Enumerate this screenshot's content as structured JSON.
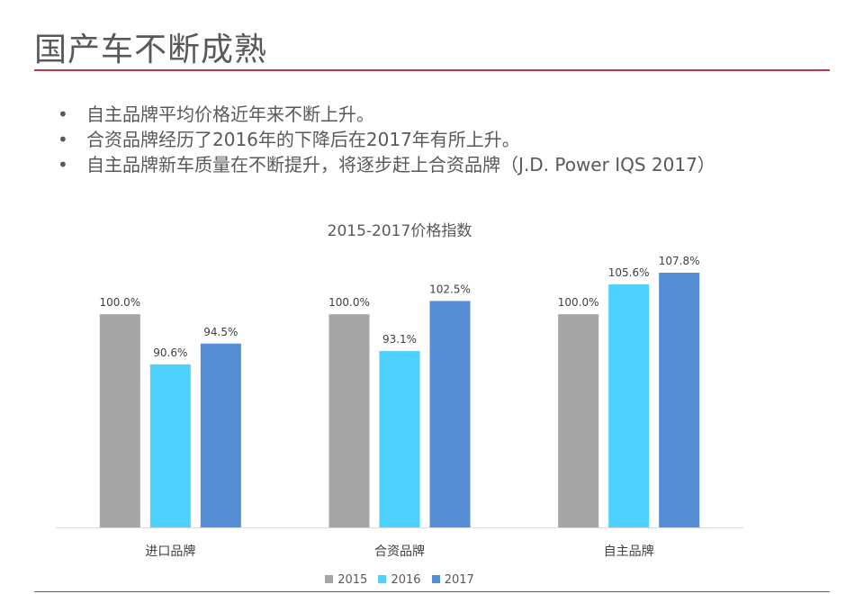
{
  "slide": {
    "title": "国产车不断成熟",
    "bullets": [
      "自主品牌平均价格近年来不断上升。",
      "合资品牌经历了2016年的下降后在2017年有所上升。",
      "自主品牌新车质量在不断提升，将逐步赶上合资品牌（J.D. Power IQS 2017）"
    ],
    "bullet_symbol": "•",
    "accent_color": "#c0354f"
  },
  "chart_data": {
    "type": "bar",
    "title": "2015-2017价格指数",
    "categories": [
      "进口品牌",
      "合资品牌",
      "自主品牌"
    ],
    "series": [
      {
        "name": "2015",
        "color": "#a5a5a5",
        "values": [
          100.0,
          100.0,
          100.0
        ]
      },
      {
        "name": "2016",
        "color": "#4dd2ff",
        "values": [
          90.6,
          93.1,
          105.6
        ]
      },
      {
        "name": "2017",
        "color": "#558ed5",
        "values": [
          94.5,
          102.5,
          107.8
        ]
      }
    ],
    "value_suffix": "%",
    "ylim": [
      60,
      110
    ],
    "grid": false,
    "legend": "bottom"
  }
}
